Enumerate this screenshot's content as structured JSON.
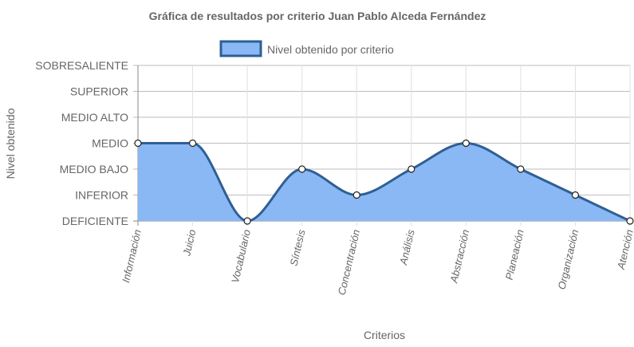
{
  "chart_data": {
    "type": "line",
    "title": "Gráfica de resultados por criterio Juan Pablo Alceda Fernández",
    "xlabel": "Criterios",
    "ylabel": "Nivel obtenido",
    "categories": [
      "Información",
      "Juicio",
      "Vocabulario",
      "Síntesis",
      "Concentración",
      "Análisis",
      "Abstracción",
      "Planeación",
      "Organización",
      "Atención"
    ],
    "y_levels": [
      "DEFICIENTE",
      "INFERIOR",
      "MEDIO BAJO",
      "MEDIO",
      "MEDIO ALTO",
      "SUPERIOR",
      "SOBRESALIENTE"
    ],
    "series": [
      {
        "name": "Nivel obtenido por criterio",
        "values": [
          3,
          3,
          0,
          2,
          1,
          2,
          3,
          2,
          1,
          0
        ],
        "fill_color": "#8ab8f5",
        "line_color": "#2f5f93"
      }
    ],
    "ylim": [
      0,
      6
    ],
    "grid": true,
    "legend_position": "top-center",
    "filled_area": true,
    "smooth": true
  }
}
